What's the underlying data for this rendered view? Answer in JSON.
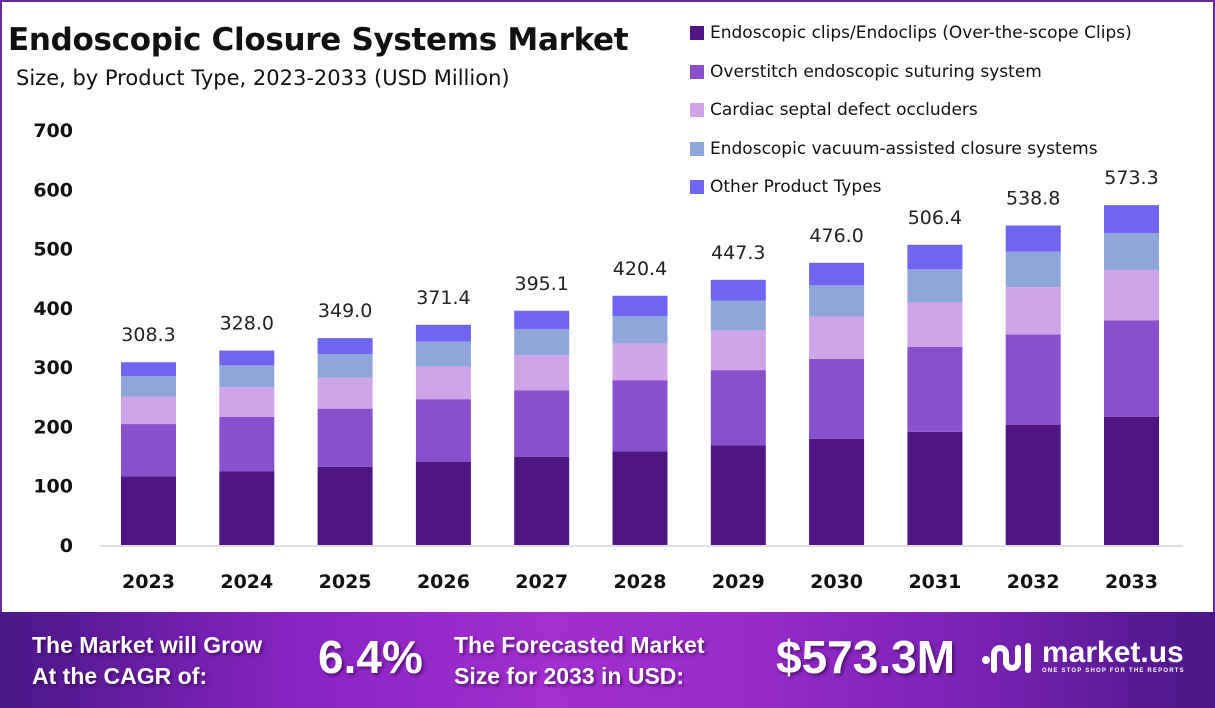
{
  "header": {
    "title": "Endoscopic Closure Systems Market",
    "subtitle": "Size, by Product Type, 2023-2033 (USD Million)"
  },
  "colors": {
    "Endoscopic clips/Endoclips (Over-the-scope Clips)": "#4f1683",
    "Overstitch endoscopic suturing system": "#8a4fcc",
    "Cardiac septal defect occluders": "#cfa4e8",
    "Endoscopic vacuum-assisted closure systems": "#8fa6da",
    "Other Product Types": "#6f65f2",
    "frame": "#6a2a9c"
  },
  "chart_data": {
    "type": "bar",
    "stacked": true,
    "title": "Endoscopic Closure Systems Market",
    "subtitle": "Size, by Product Type, 2023-2033 (USD Million)",
    "xlabel": "",
    "ylabel": "",
    "ylim": [
      0,
      700
    ],
    "yticks": [
      0,
      100,
      200,
      300,
      400,
      500,
      600,
      700
    ],
    "grid": false,
    "legend_position": "top-right",
    "categories": [
      "2023",
      "2024",
      "2025",
      "2026",
      "2027",
      "2028",
      "2029",
      "2030",
      "2031",
      "2032",
      "2033"
    ],
    "totals": [
      308.3,
      328.0,
      349.0,
      371.4,
      395.1,
      420.4,
      447.3,
      476.0,
      506.4,
      538.8,
      573.3
    ],
    "total_labels": [
      "308.3",
      "328.0",
      "349.0",
      "371.4",
      "395.1",
      "420.4",
      "447.3",
      "476.0",
      "506.4",
      "538.8",
      "573.3"
    ],
    "series": [
      {
        "name": "Endoscopic clips/Endoclips (Over-the-scope Clips)",
        "values": [
          116.0,
          124.0,
          132.0,
          140.0,
          149.0,
          158.0,
          168.0,
          179.0,
          191.0,
          203.0,
          216.0
        ]
      },
      {
        "name": "Overstitch endoscopic suturing system",
        "values": [
          88.0,
          92.0,
          98.0,
          106.0,
          112.0,
          120.0,
          127.0,
          135.0,
          143.0,
          152.0,
          163.0
        ]
      },
      {
        "name": "Cardiac septal defect occluders",
        "values": [
          46.0,
          50.0,
          52.0,
          55.0,
          59.0,
          62.0,
          67.0,
          71.0,
          75.0,
          80.0,
          85.0
        ]
      },
      {
        "name": "Endoscopic vacuum-assisted closure systems",
        "values": [
          35.0,
          37.0,
          40.0,
          42.0,
          44.0,
          46.0,
          50.0,
          53.0,
          56.0,
          60.0,
          62.0
        ]
      },
      {
        "name": "Other Product Types",
        "values": [
          23.3,
          25.0,
          27.0,
          28.4,
          31.1,
          34.4,
          35.3,
          38.0,
          41.4,
          43.8,
          47.3
        ]
      }
    ]
  },
  "footer": {
    "cagr_label_line1": "The Market will Grow",
    "cagr_label_line2": "At the CAGR of:",
    "cagr_value": "6.4%",
    "forecast_label_line1": "The Forecasted Market",
    "forecast_label_line2": "Size for 2033 in USD:",
    "forecast_value": "$573.3M",
    "brand_name": "market.us",
    "brand_tagline": "ONE STOP SHOP FOR THE REPORTS"
  }
}
